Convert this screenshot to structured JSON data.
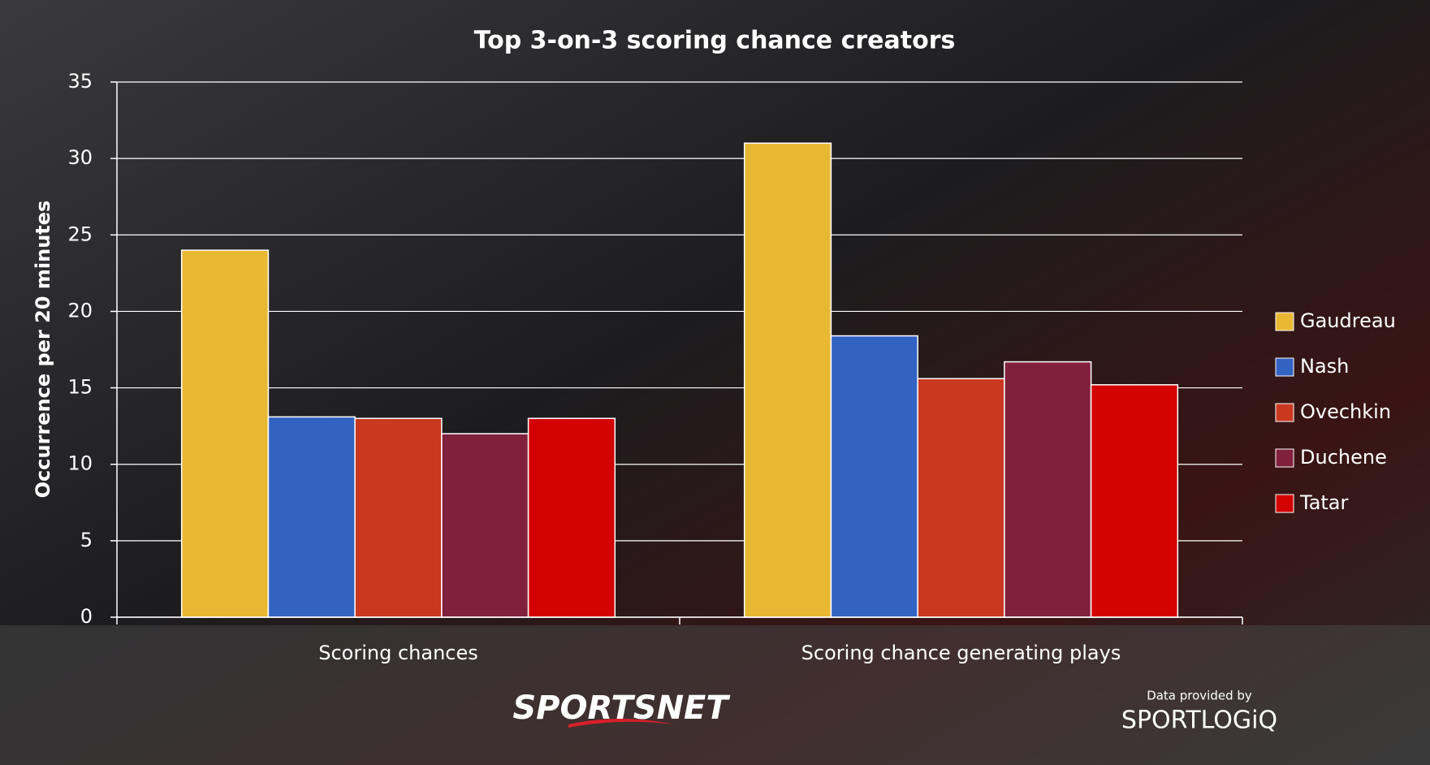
{
  "chart_data": {
    "type": "bar",
    "title": "Top 3-on-3 scoring chance creators",
    "y_label": "Occurrence per 20 minutes",
    "categories": [
      "Scoring chances",
      "Scoring chance generating plays"
    ],
    "series": [
      {
        "name": "Gaudreau",
        "color": "#e8b833",
        "values": [
          24,
          31
        ]
      },
      {
        "name": "Nash",
        "color": "#3262c2",
        "values": [
          13.1,
          18.4
        ]
      },
      {
        "name": "Ovechkin",
        "color": "#c9381f",
        "values": [
          13,
          15.6
        ]
      },
      {
        "name": "Duchene",
        "color": "#80203c",
        "values": [
          12,
          16.7
        ]
      },
      {
        "name": "Tatar",
        "color": "#d30303",
        "values": [
          13,
          15.2
        ]
      }
    ],
    "ylim": [
      0,
      35
    ],
    "yticks": [
      0,
      5,
      10,
      15,
      20,
      25,
      30,
      35
    ],
    "grid": true,
    "legend": "right"
  },
  "footer": {
    "logo": "SPORTSNET",
    "credit": "Data provided by",
    "credit_logo": "SPORTLOGiQ"
  }
}
